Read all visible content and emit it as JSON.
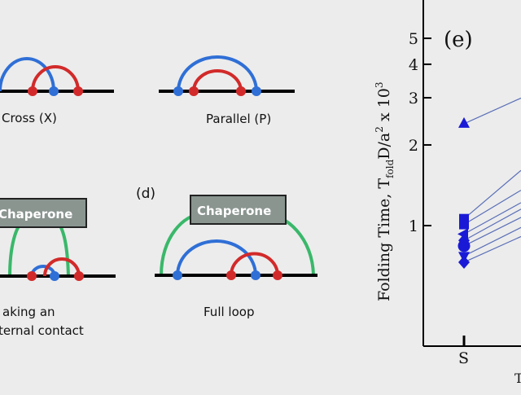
{
  "figure": {
    "labels": {
      "cross": "Cross (X)",
      "parallel": "Parallel (P)",
      "panel_d": "(d)",
      "breaking_line1": "aking an",
      "breaking_line2": "ternal contact",
      "full_loop": "Full loop"
    },
    "chaperone_label": "Chaperone",
    "colors": {
      "blue": "#2f6fd6",
      "red": "#d22a2a",
      "green": "#39b86a",
      "chaperone_box": "#8a9590",
      "background": "#ececec"
    }
  },
  "chart_data": {
    "type": "scatter",
    "panel_label": "(e)",
    "ylabel_main": "Folding Time, T",
    "ylabel_sub": "fold",
    "ylabel_rest": "D/a",
    "ylabel_sup1": "2",
    "ylabel_x": " x 10",
    "ylabel_sup2": "3",
    "y_scale": "log",
    "y_ticks": [
      "1",
      "2",
      "3",
      "4",
      "5"
    ],
    "y_tick_values": [
      1,
      2,
      3,
      4,
      5
    ],
    "x_ticks": [
      "S"
    ],
    "points": [
      {
        "marker": "triangle-up",
        "x": "S",
        "y": 2.4
      },
      {
        "marker": "square",
        "x": "S",
        "y": 1.06
      },
      {
        "marker": "square",
        "x": "S",
        "y": 1.01
      },
      {
        "marker": "triangle-left",
        "x": "S",
        "y": 0.93
      },
      {
        "marker": "diamond",
        "x": "S",
        "y": 0.88
      },
      {
        "marker": "circle",
        "x": "S",
        "y": 0.84
      },
      {
        "marker": "triangle-down",
        "x": "S",
        "y": 0.77
      },
      {
        "marker": "diamond",
        "x": "S",
        "y": 0.73
      }
    ],
    "marker_color": "#1a1ad6",
    "line_color": "#5a6fb8"
  }
}
